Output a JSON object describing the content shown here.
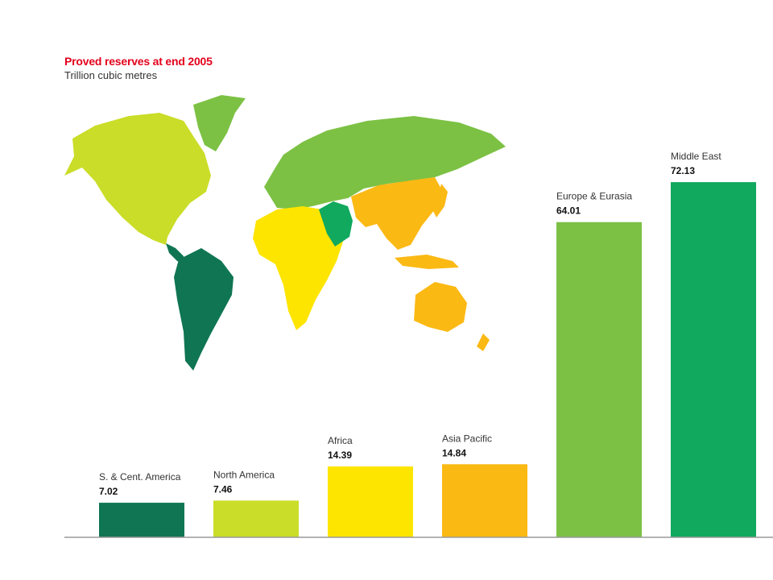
{
  "title": "Proved reserves at end 2005",
  "subtitle": "Trillion cubic metres",
  "chart_data": {
    "type": "bar",
    "title": "Proved reserves at end 2005",
    "subtitle": "Trillion cubic metres",
    "categories": [
      "S. & Cent. America",
      "North America",
      "Africa",
      "Asia Pacific",
      "Europe & Eurasia",
      "Middle East"
    ],
    "values": [
      7.02,
      7.46,
      14.39,
      14.84,
      64.01,
      72.13
    ],
    "colors": [
      "#0f7553",
      "#cadd28",
      "#fde500",
      "#fbb914",
      "#7cc144",
      "#10a95e"
    ],
    "ylim": [
      0,
      80
    ],
    "grid": false,
    "legend": "none",
    "value_labels": true
  },
  "map": {
    "regions": [
      {
        "name": "North America",
        "color": "#cadd28"
      },
      {
        "name": "S. & Cent. America",
        "color": "#0f7553"
      },
      {
        "name": "Europe & Eurasia",
        "color": "#7cc144"
      },
      {
        "name": "Africa",
        "color": "#fde500"
      },
      {
        "name": "Middle East",
        "color": "#10a95e"
      },
      {
        "name": "Asia Pacific",
        "color": "#fbb914"
      }
    ]
  }
}
